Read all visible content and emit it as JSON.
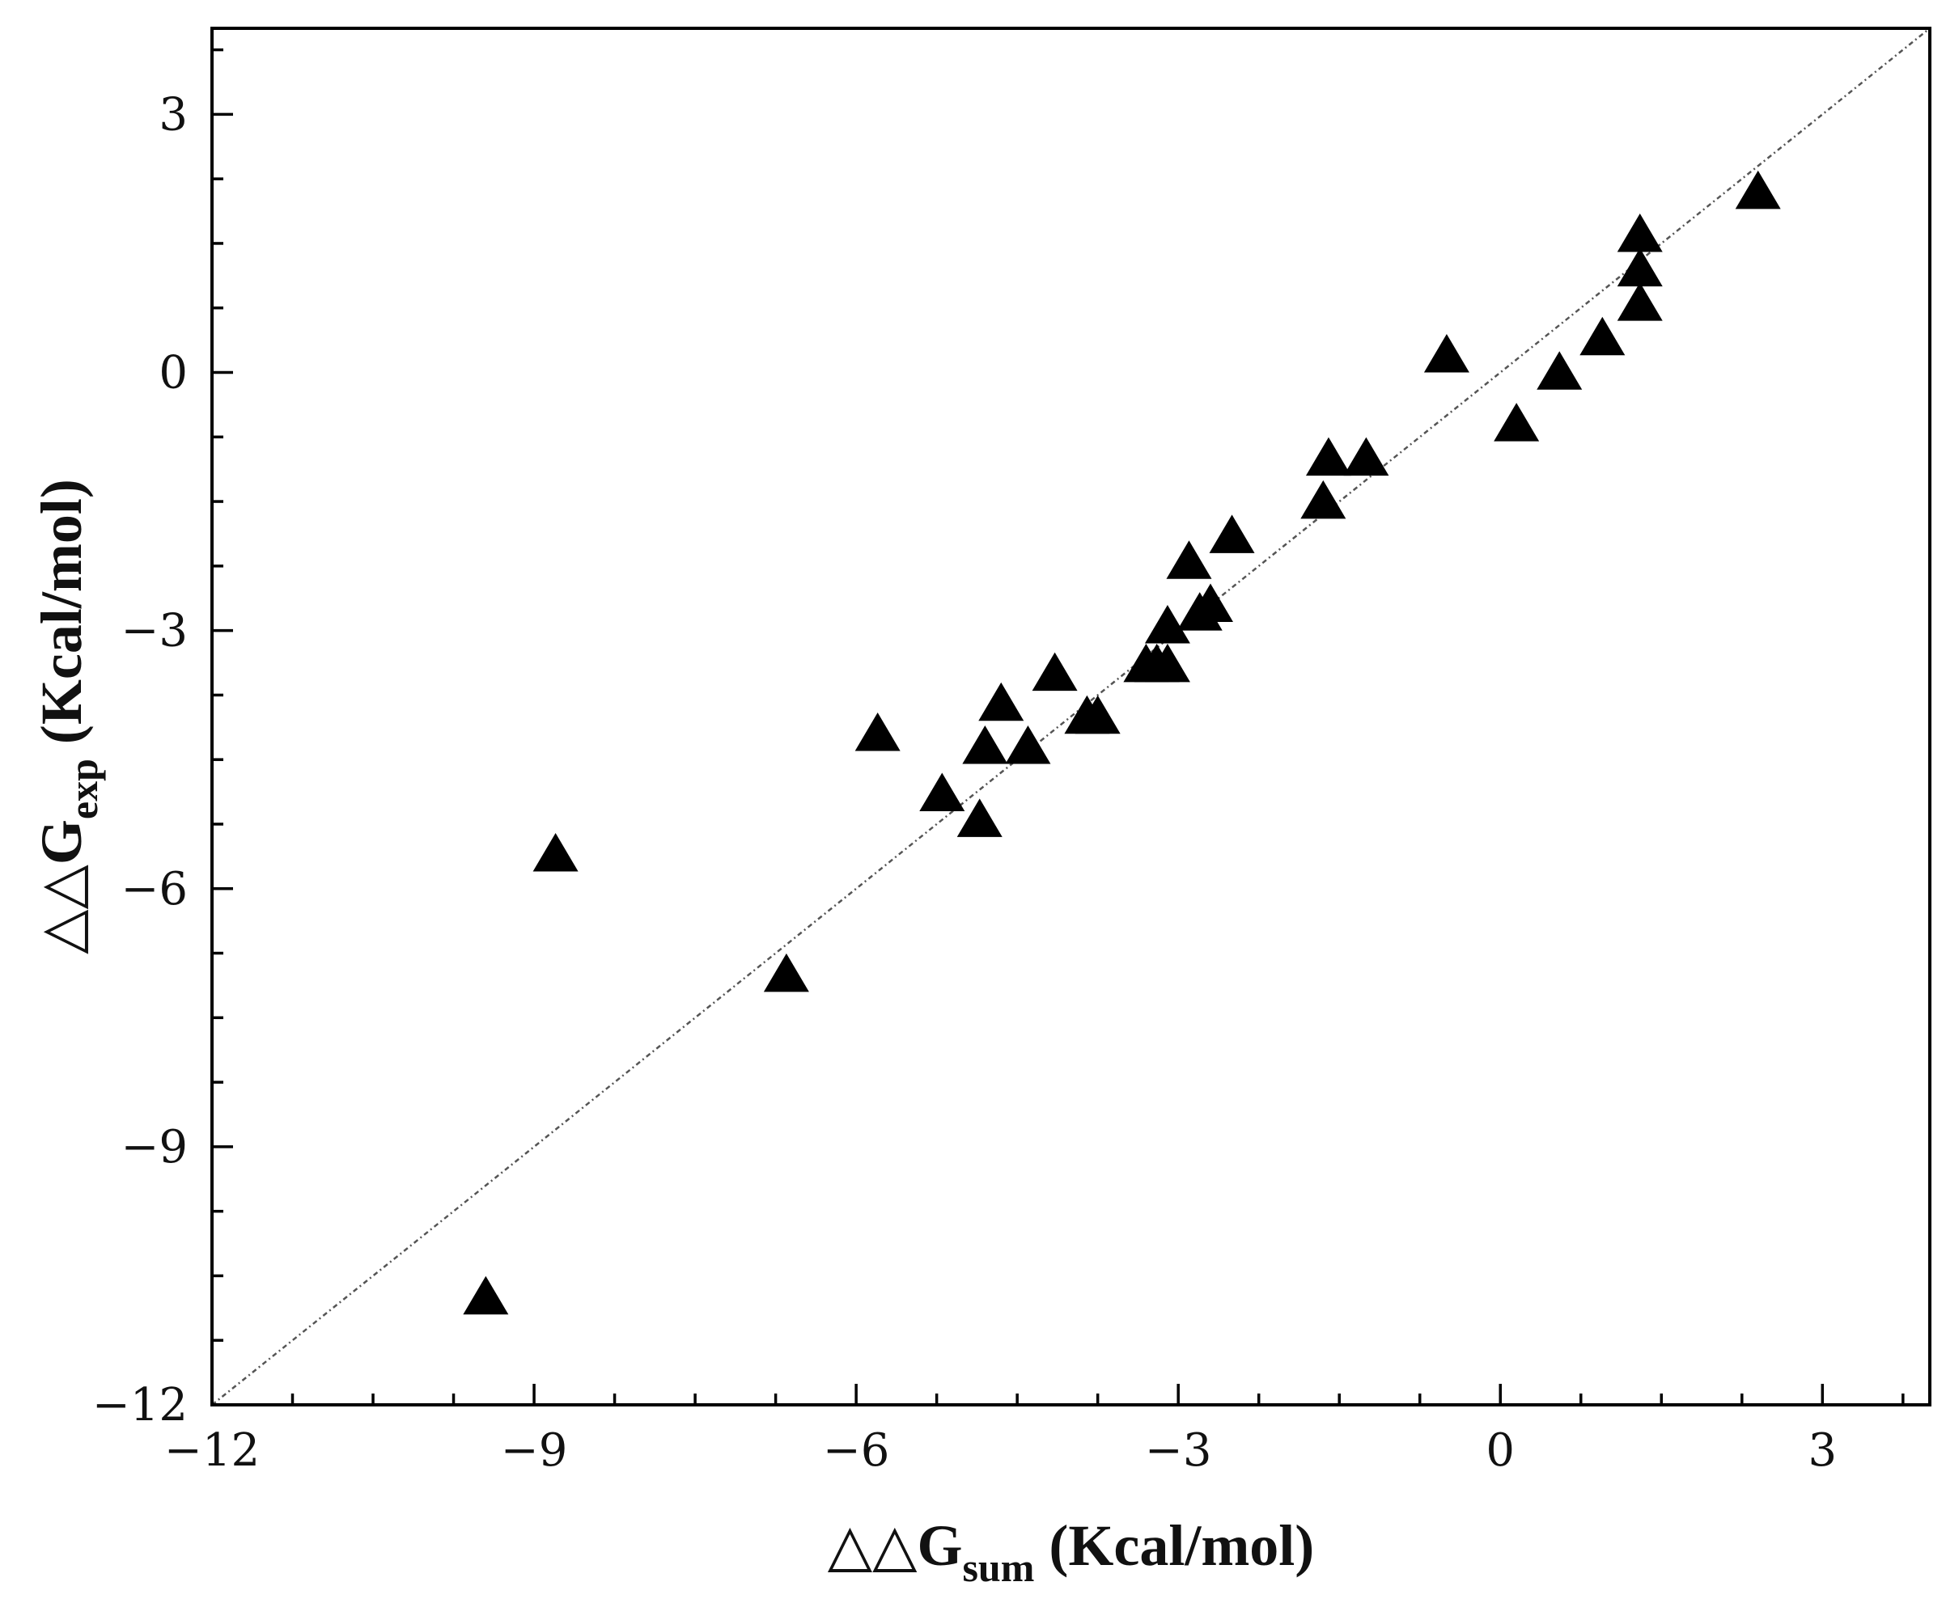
{
  "chart_data": {
    "type": "scatter",
    "xlabel": {
      "main": "△△G",
      "sub": "sum",
      "unit": " (Kcal/mol)"
    },
    "ylabel": {
      "main": "△△G",
      "sub": "exp",
      "unit": " (Kcal/mol)"
    },
    "xlim": [
      -12,
      4
    ],
    "ylim": [
      -12,
      4
    ],
    "x_ticks": [
      -12,
      -9,
      -6,
      -3,
      0,
      3
    ],
    "x_tick_labels": [
      "−12",
      "−9",
      "−6",
      "−3",
      "0",
      "3"
    ],
    "y_ticks": [
      -12,
      -9,
      -6,
      -3,
      0,
      3
    ],
    "y_tick_labels": [
      "−12",
      "−9",
      "−6",
      "−3",
      "0",
      "3"
    ],
    "x_minor_step": 0.75,
    "y_minor_step": 0.75,
    "reference_line": {
      "from": [
        -12,
        -12
      ],
      "to": [
        4,
        4
      ],
      "style": "dotted",
      "color": "#555555"
    },
    "grid": false,
    "legend": "none",
    "marker": {
      "shape": "triangle",
      "color": "#000000"
    },
    "series": [
      {
        "points": [
          [
            -9.45,
            -10.75
          ],
          [
            -8.8,
            -5.6
          ],
          [
            -6.65,
            -7.0
          ],
          [
            -5.8,
            -4.2
          ],
          [
            -5.2,
            -4.9
          ],
          [
            -4.85,
            -5.2
          ],
          [
            -4.8,
            -4.35
          ],
          [
            -4.65,
            -3.85
          ],
          [
            -4.4,
            -4.35
          ],
          [
            -4.15,
            -3.5
          ],
          [
            -3.85,
            -4.0
          ],
          [
            -3.75,
            -4.0
          ],
          [
            -3.3,
            -3.4
          ],
          [
            -3.2,
            -3.4
          ],
          [
            -3.1,
            -3.4
          ],
          [
            -3.1,
            -2.95
          ],
          [
            -2.9,
            -2.2
          ],
          [
            -2.8,
            -2.8
          ],
          [
            -2.7,
            -2.7
          ],
          [
            -2.5,
            -1.9
          ],
          [
            -1.65,
            -1.5
          ],
          [
            -1.6,
            -1.0
          ],
          [
            -1.25,
            -1.0
          ],
          [
            -0.5,
            0.2
          ],
          [
            0.15,
            -0.6
          ],
          [
            0.55,
            0.0
          ],
          [
            0.95,
            0.4
          ],
          [
            1.3,
            1.6
          ],
          [
            1.3,
            1.2
          ],
          [
            1.3,
            0.8
          ],
          [
            2.4,
            2.1
          ]
        ]
      }
    ]
  }
}
